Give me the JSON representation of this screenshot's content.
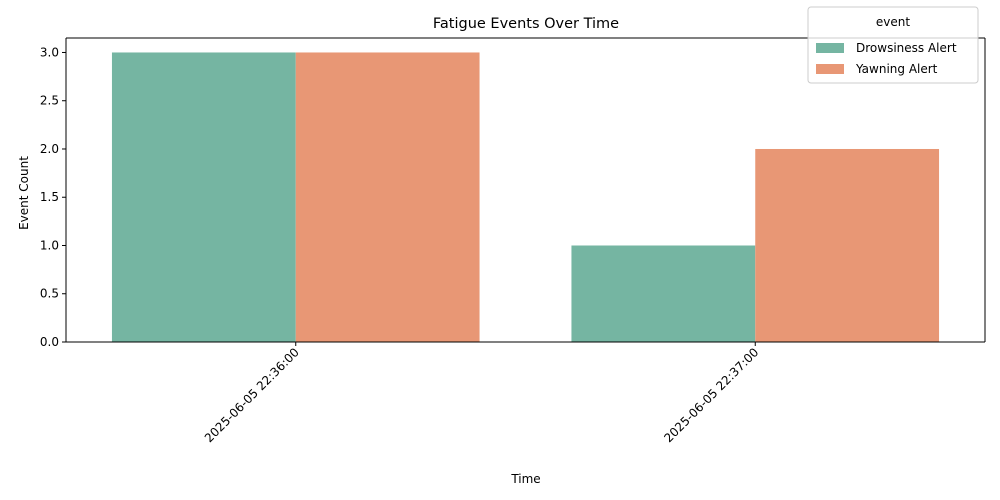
{
  "chart_data": {
    "type": "bar",
    "title": "Fatigue Events Over Time",
    "xlabel": "Time",
    "ylabel": "Event Count",
    "categories": [
      "2025-06-05 22:36:00",
      "2025-06-05 22:37:00"
    ],
    "series": [
      {
        "name": "Drowsiness Alert",
        "values": [
          3,
          1
        ],
        "color": "#75b5a2"
      },
      {
        "name": "Yawning Alert",
        "values": [
          3,
          2
        ],
        "color": "#e89775"
      }
    ],
    "ylim": [
      0,
      3.15
    ],
    "yticks": [
      "0.0",
      "0.5",
      "1.0",
      "1.5",
      "2.0",
      "2.5",
      "3.0"
    ],
    "grid": false,
    "legend": {
      "title": "event",
      "placement": "top-right"
    }
  }
}
